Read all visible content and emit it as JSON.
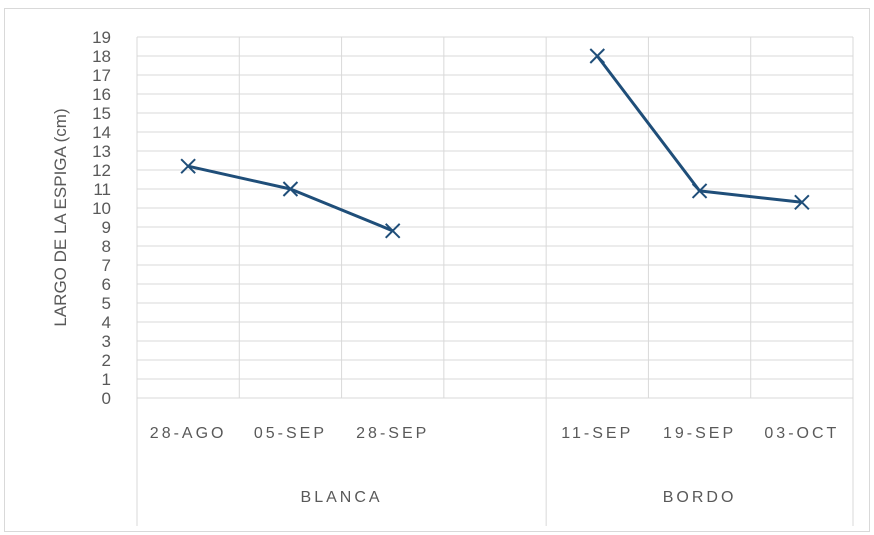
{
  "chart_data": {
    "type": "line",
    "ylabel": "LARGO DE LA ESPIGA (cm)",
    "xlabel": "",
    "ylim": [
      0,
      19
    ],
    "yticks": [
      0,
      1,
      2,
      3,
      4,
      5,
      6,
      7,
      8,
      9,
      10,
      11,
      12,
      13,
      14,
      15,
      16,
      17,
      18,
      19
    ],
    "grid": true,
    "legend": "none",
    "line_color": "#1f4e79",
    "marker": "x",
    "groups": [
      {
        "name": "BLANCA",
        "categories": [
          "28-AGO",
          "05-SEP",
          "28-SEP",
          ""
        ],
        "values": [
          12.2,
          11.0,
          8.8,
          null
        ]
      },
      {
        "name": "BORDO",
        "categories": [
          "11-SEP",
          "19-SEP",
          "03-OCT"
        ],
        "values": [
          18.0,
          10.9,
          10.3
        ]
      }
    ]
  }
}
